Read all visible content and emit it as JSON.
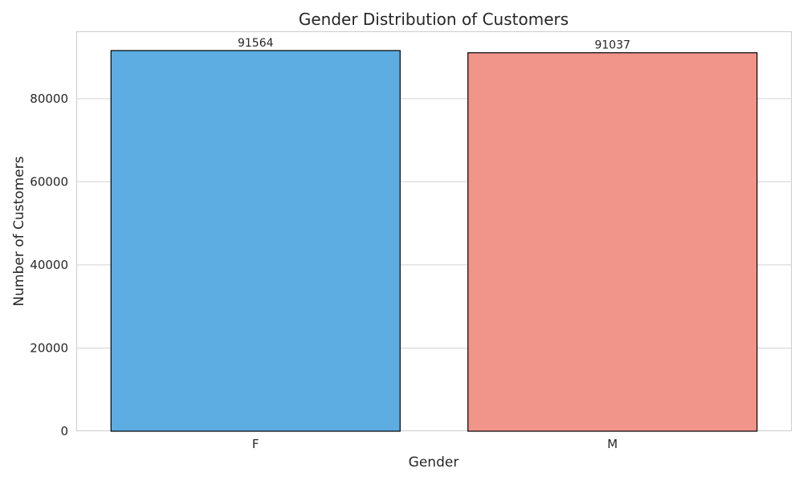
{
  "chart_data": {
    "type": "bar",
    "title": "Gender Distribution of Customers",
    "xlabel": "Gender",
    "ylabel": "Number of Customers",
    "categories": [
      "F",
      "M"
    ],
    "values": [
      91564,
      91037
    ],
    "data_labels": [
      "91564",
      "91037"
    ],
    "colors": [
      "#5dade2",
      "#f1948a"
    ],
    "edge_color": "#000000",
    "ylim": [
      0,
      96000
    ],
    "yticks": [
      0,
      20000,
      40000,
      60000,
      80000
    ],
    "ytick_labels": [
      "0",
      "20000",
      "40000",
      "60000",
      "80000"
    ],
    "grid": true
  }
}
